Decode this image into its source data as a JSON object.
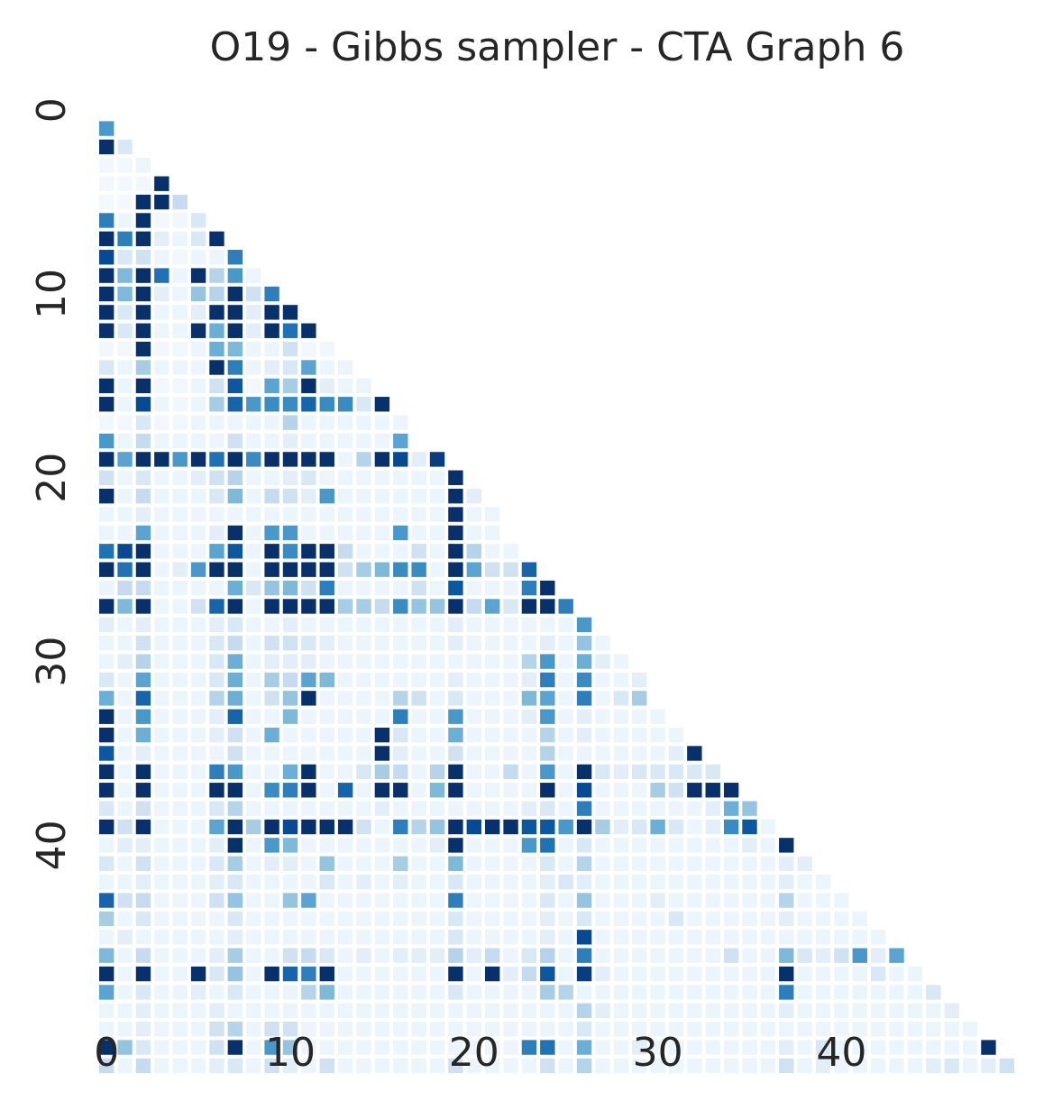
{
  "chart_data": {
    "type": "heatmap",
    "title": "O19 - Gibbs sampler - CTA Graph 6",
    "xlabel": "",
    "ylabel": "",
    "n": 50,
    "mask": "lower-triangle",
    "colormap": "Blues",
    "vmin": 0,
    "vmax": 1,
    "colorbar": false,
    "grid": false,
    "x_ticks": [
      0,
      10,
      20,
      30,
      40
    ],
    "x_tick_labels": [
      "0",
      "10",
      "20",
      "30",
      "40"
    ],
    "y_ticks": [
      0,
      10,
      20,
      30,
      40
    ],
    "y_tick_labels": [
      "0",
      "10",
      "20",
      "30",
      "40"
    ],
    "rows": [
      [],
      [
        0.6
      ],
      [
        1.0,
        0.15
      ],
      [
        0.03,
        0.03,
        0.05
      ],
      [
        0.02,
        0.02,
        0.03,
        1.0
      ],
      [
        0.02,
        0.02,
        1.0,
        1.0,
        0.25
      ],
      [
        0.7,
        0.05,
        1.0,
        0.03,
        0.03,
        0.15
      ],
      [
        1.0,
        0.7,
        1.0,
        0.1,
        0.05,
        0.15,
        1.0
      ],
      [
        0.9,
        0.15,
        0.2,
        0.05,
        0.03,
        0.05,
        0.05,
        0.7
      ],
      [
        1.0,
        0.45,
        1.0,
        0.75,
        0.05,
        1.0,
        0.3,
        0.6,
        0.05
      ],
      [
        1.0,
        0.45,
        1.0,
        0.1,
        0.05,
        0.4,
        0.3,
        1.0,
        0.2,
        0.7
      ],
      [
        1.0,
        0.15,
        1.0,
        0.05,
        0.05,
        0.1,
        1.0,
        1.0,
        0.1,
        1.0,
        1.0
      ],
      [
        1.0,
        0.15,
        1.0,
        0.05,
        0.05,
        1.0,
        0.5,
        1.0,
        0.1,
        1.0,
        0.75,
        1.0
      ],
      [
        0.03,
        0.03,
        1.0,
        0.03,
        0.03,
        0.05,
        0.5,
        0.45,
        0.05,
        0.05,
        0.2,
        0.03,
        0.03
      ],
      [
        0.15,
        0.05,
        0.35,
        0.05,
        0.05,
        0.05,
        1.0,
        0.7,
        0.05,
        0.1,
        0.15,
        0.55,
        0.05,
        0.05
      ],
      [
        1.0,
        0.05,
        1.0,
        0.03,
        0.03,
        0.05,
        0.2,
        0.85,
        0.03,
        0.55,
        0.35,
        1.0,
        0.1,
        0.05,
        0.05
      ],
      [
        1.0,
        0.05,
        0.9,
        0.05,
        0.03,
        0.05,
        0.35,
        0.8,
        0.6,
        0.65,
        0.65,
        0.8,
        0.65,
        0.65,
        0.15,
        1.0
      ],
      [
        0.03,
        0.03,
        0.15,
        0.03,
        0.03,
        0.05,
        0.05,
        0.05,
        0.05,
        0.05,
        0.3,
        0.05,
        0.05,
        0.05,
        0.05,
        0.05,
        0.05
      ],
      [
        0.6,
        0.05,
        0.25,
        0.05,
        0.05,
        0.05,
        0.05,
        0.2,
        0.05,
        0.05,
        0.1,
        0.05,
        0.05,
        0.05,
        0.05,
        0.05,
        0.55
      ],
      [
        1.0,
        0.55,
        1.0,
        1.0,
        0.6,
        1.0,
        0.75,
        1.0,
        0.65,
        1.0,
        1.0,
        1.0,
        1.0,
        0.05,
        0.3,
        1.0,
        0.9,
        0.1,
        0.95
      ],
      [
        0.2,
        0.05,
        0.15,
        0.05,
        0.05,
        0.1,
        0.2,
        0.3,
        0.05,
        0.05,
        0.1,
        0.15,
        0.05,
        0.05,
        0.05,
        0.05,
        0.05,
        0.05,
        0.05,
        1.0
      ],
      [
        1.0,
        0.05,
        0.25,
        0.05,
        0.05,
        0.05,
        0.15,
        0.45,
        0.05,
        0.25,
        0.2,
        0.1,
        0.6,
        0.05,
        0.05,
        0.05,
        0.05,
        0.05,
        0.05,
        1.0,
        0.1
      ],
      [
        0.05,
        0.05,
        0.1,
        0.05,
        0.05,
        0.05,
        0.05,
        0.05,
        0.05,
        0.05,
        0.05,
        0.05,
        0.05,
        0.05,
        0.05,
        0.05,
        0.05,
        0.05,
        0.05,
        1.0,
        0.05,
        0.05
      ],
      [
        0.05,
        0.05,
        0.55,
        0.05,
        0.05,
        0.05,
        0.1,
        1.0,
        0.05,
        0.6,
        0.6,
        0.05,
        0.05,
        0.05,
        0.05,
        0.05,
        0.6,
        0.05,
        0.05,
        1.0,
        0.05,
        0.05
      ],
      [
        0.75,
        0.9,
        1.0,
        0.05,
        0.05,
        0.05,
        0.55,
        0.85,
        0.05,
        1.0,
        0.65,
        1.0,
        1.0,
        0.25,
        0.05,
        0.05,
        0.05,
        0.2,
        0.05,
        1.0,
        0.3,
        0.05,
        0.05
      ],
      [
        1.0,
        0.75,
        1.0,
        0.05,
        0.1,
        0.6,
        1.0,
        1.0,
        0.05,
        1.0,
        1.0,
        1.0,
        1.0,
        0.2,
        0.35,
        0.45,
        0.65,
        0.65,
        0.05,
        1.0,
        0.55,
        0.2,
        0.2,
        0.8
      ],
      [
        0.05,
        0.25,
        0.25,
        0.05,
        0.05,
        0.05,
        0.05,
        0.5,
        0.15,
        0.4,
        0.45,
        0.2,
        0.7,
        0.05,
        0.05,
        0.05,
        0.05,
        0.2,
        0.05,
        0.85,
        0.05,
        0.05,
        0.05,
        0.7,
        1.0
      ],
      [
        1.0,
        0.45,
        1.0,
        0.05,
        0.05,
        0.2,
        0.8,
        1.0,
        0.05,
        1.0,
        1.0,
        1.0,
        1.0,
        0.35,
        0.35,
        0.25,
        0.65,
        0.4,
        0.4,
        1.0,
        0.25,
        0.55,
        0.15,
        1.0,
        1.0,
        0.7
      ],
      [
        0.1,
        0.05,
        0.1,
        0.05,
        0.05,
        0.05,
        0.1,
        0.15,
        0.05,
        0.05,
        0.1,
        0.05,
        0.05,
        0.05,
        0.05,
        0.05,
        0.05,
        0.05,
        0.05,
        0.1,
        0.05,
        0.05,
        0.05,
        0.05,
        0.05,
        0.05,
        0.6
      ],
      [
        0.05,
        0.05,
        0.2,
        0.05,
        0.05,
        0.05,
        0.15,
        0.25,
        0.05,
        0.2,
        0.2,
        0.15,
        0.1,
        0.05,
        0.05,
        0.05,
        0.05,
        0.05,
        0.05,
        0.1,
        0.05,
        0.05,
        0.05,
        0.05,
        0.1,
        0.05,
        0.4,
        0.05
      ],
      [
        0.05,
        0.1,
        0.3,
        0.05,
        0.05,
        0.05,
        0.15,
        0.5,
        0.05,
        0.1,
        0.1,
        0.1,
        0.05,
        0.05,
        0.05,
        0.05,
        0.05,
        0.05,
        0.05,
        0.05,
        0.05,
        0.05,
        0.05,
        0.3,
        0.6,
        0.05,
        0.5,
        0.1,
        0.05
      ],
      [
        0.15,
        0.05,
        0.55,
        0.05,
        0.05,
        0.05,
        0.15,
        0.5,
        0.05,
        0.35,
        0.25,
        0.55,
        0.45,
        0.05,
        0.05,
        0.05,
        0.05,
        0.05,
        0.05,
        0.1,
        0.05,
        0.05,
        0.05,
        0.1,
        0.7,
        0.05,
        0.65,
        0.05,
        0.05,
        0.1
      ],
      [
        0.5,
        0.05,
        0.8,
        0.05,
        0.05,
        0.05,
        0.3,
        0.5,
        0.05,
        0.2,
        0.4,
        1.0,
        0.05,
        0.05,
        0.05,
        0.05,
        0.3,
        0.2,
        0.05,
        0.15,
        0.05,
        0.05,
        0.05,
        0.45,
        0.55,
        0.05,
        0.7,
        0.05,
        0.15,
        0.35
      ],
      [
        1.0,
        0.05,
        0.6,
        0.05,
        0.05,
        0.05,
        0.1,
        0.8,
        0.05,
        0.05,
        0.45,
        0.05,
        0.05,
        0.05,
        0.05,
        0.05,
        0.7,
        0.05,
        0.05,
        0.6,
        0.05,
        0.05,
        0.05,
        0.1,
        0.6,
        0.05,
        0.1,
        0.05,
        0.05,
        0.05,
        0.05
      ],
      [
        1.0,
        0.05,
        0.5,
        0.05,
        0.05,
        0.05,
        0.1,
        0.2,
        0.05,
        0.5,
        0.05,
        0.05,
        0.05,
        0.05,
        0.05,
        1.0,
        0.15,
        0.05,
        0.05,
        0.5,
        0.05,
        0.05,
        0.05,
        0.05,
        0.3,
        0.05,
        0.1,
        0.05,
        0.05,
        0.05,
        0.05,
        0.05
      ],
      [
        0.85,
        0.05,
        0.1,
        0.05,
        0.05,
        0.05,
        0.05,
        0.2,
        0.05,
        0.05,
        0.05,
        0.05,
        0.05,
        0.05,
        0.05,
        1.0,
        0.1,
        0.05,
        0.05,
        0.2,
        0.05,
        0.05,
        0.05,
        0.05,
        0.3,
        0.05,
        0.05,
        0.05,
        0.05,
        0.05,
        0.05,
        0.1,
        1.0
      ],
      [
        1.0,
        0.05,
        1.0,
        0.05,
        0.05,
        0.05,
        0.7,
        0.6,
        0.05,
        0.05,
        0.5,
        1.0,
        0.05,
        0.05,
        0.15,
        0.35,
        0.25,
        0.05,
        0.3,
        1.0,
        0.05,
        0.05,
        0.25,
        0.05,
        0.6,
        0.05,
        1.0,
        0.15,
        0.1,
        0.15,
        0.15,
        0.15,
        0.15,
        0.15
      ],
      [
        1.0,
        0.05,
        1.0,
        0.05,
        0.05,
        0.05,
        1.0,
        1.0,
        0.05,
        0.65,
        0.7,
        1.0,
        0.05,
        0.8,
        0.05,
        1.0,
        1.0,
        0.05,
        0.45,
        1.0,
        0.05,
        0.05,
        0.05,
        0.05,
        1.0,
        0.05,
        0.9,
        0.05,
        0.05,
        0.05,
        0.35,
        0.2,
        1.0,
        1.0,
        1.0
      ],
      [
        0.15,
        0.05,
        0.2,
        0.05,
        0.05,
        0.05,
        0.15,
        0.3,
        0.05,
        0.05,
        0.05,
        0.05,
        0.05,
        0.05,
        0.05,
        0.1,
        0.05,
        0.05,
        0.05,
        0.05,
        0.05,
        0.05,
        0.05,
        0.1,
        0.15,
        0.05,
        0.7,
        0.05,
        0.05,
        0.05,
        0.05,
        0.05,
        0.05,
        0.1,
        0.5,
        0.4
      ],
      [
        1.0,
        0.2,
        1.0,
        0.05,
        0.05,
        0.05,
        0.55,
        1.0,
        0.35,
        1.0,
        0.9,
        1.0,
        1.0,
        1.0,
        0.2,
        0.05,
        0.7,
        0.3,
        0.4,
        1.0,
        0.9,
        1.0,
        1.0,
        0.85,
        0.85,
        0.6,
        1.0,
        0.35,
        0.1,
        0.15,
        0.5,
        0.15,
        0.05,
        0.1,
        0.65,
        0.85,
        0.05
      ],
      [
        0.05,
        0.1,
        0.1,
        0.05,
        0.05,
        0.05,
        0.1,
        1.0,
        0.05,
        0.6,
        0.45,
        0.05,
        0.05,
        0.05,
        0.05,
        0.05,
        0.05,
        0.05,
        0.1,
        1.0,
        0.05,
        0.05,
        0.05,
        0.6,
        0.75,
        0.05,
        0.15,
        0.05,
        0.05,
        0.05,
        0.05,
        0.05,
        0.05,
        0.05,
        0.05,
        0.1,
        0.05,
        1.0
      ],
      [
        0.15,
        0.05,
        0.2,
        0.05,
        0.05,
        0.05,
        0.15,
        0.35,
        0.05,
        0.1,
        0.1,
        0.05,
        0.4,
        0.05,
        0.05,
        0.05,
        0.35,
        0.05,
        0.05,
        0.45,
        0.05,
        0.05,
        0.05,
        0.05,
        0.15,
        0.05,
        0.3,
        0.05,
        0.05,
        0.05,
        0.05,
        0.05,
        0.05,
        0.05,
        0.05,
        0.05,
        0.05,
        0.1,
        0.1
      ],
      [
        0.05,
        0.05,
        0.1,
        0.05,
        0.05,
        0.05,
        0.1,
        0.15,
        0.05,
        0.05,
        0.05,
        0.05,
        0.15,
        0.05,
        0.1,
        0.05,
        0.1,
        0.05,
        0.05,
        0.15,
        0.05,
        0.05,
        0.05,
        0.05,
        0.1,
        0.15,
        0.1,
        0.05,
        0.05,
        0.05,
        0.05,
        0.05,
        0.05,
        0.05,
        0.05,
        0.05,
        0.05,
        0.1,
        0.05,
        0.05
      ],
      [
        0.8,
        0.2,
        0.25,
        0.05,
        0.05,
        0.05,
        0.2,
        0.4,
        0.05,
        0.05,
        0.4,
        0.55,
        0.05,
        0.05,
        0.05,
        0.05,
        0.05,
        0.05,
        0.05,
        0.7,
        0.05,
        0.05,
        0.05,
        0.05,
        0.15,
        0.05,
        0.4,
        0.05,
        0.05,
        0.05,
        0.1,
        0.05,
        0.05,
        0.05,
        0.05,
        0.05,
        0.05,
        0.3,
        0.05,
        0.05,
        0.05
      ],
      [
        0.35,
        0.05,
        0.15,
        0.05,
        0.05,
        0.05,
        0.05,
        0.15,
        0.05,
        0.05,
        0.05,
        0.05,
        0.05,
        0.05,
        0.05,
        0.05,
        0.05,
        0.05,
        0.05,
        0.15,
        0.05,
        0.05,
        0.05,
        0.05,
        0.1,
        0.05,
        0.15,
        0.05,
        0.05,
        0.05,
        0.05,
        0.15,
        0.05,
        0.05,
        0.05,
        0.05,
        0.05,
        0.1,
        0.05,
        0.05,
        0.05,
        0.05
      ],
      [
        0.05,
        0.1,
        0.05,
        0.05,
        0.05,
        0.05,
        0.05,
        0.1,
        0.05,
        0.05,
        0.05,
        0.05,
        0.05,
        0.05,
        0.05,
        0.05,
        0.05,
        0.05,
        0.05,
        0.15,
        0.05,
        0.05,
        0.05,
        0.05,
        0.1,
        0.05,
        0.9,
        0.05,
        0.05,
        0.05,
        0.05,
        0.05,
        0.05,
        0.05,
        0.05,
        0.05,
        0.05,
        0.05,
        0.05,
        0.05,
        0.05,
        0.05,
        0.05
      ],
      [
        0.45,
        0.05,
        0.25,
        0.05,
        0.05,
        0.05,
        0.1,
        0.35,
        0.05,
        0.05,
        0.2,
        0.25,
        0.15,
        0.05,
        0.1,
        0.05,
        0.1,
        0.1,
        0.1,
        0.3,
        0.1,
        0.25,
        0.05,
        0.15,
        0.3,
        0.05,
        0.7,
        0.05,
        0.05,
        0.05,
        0.05,
        0.05,
        0.05,
        0.05,
        0.2,
        0.05,
        0.05,
        0.45,
        0.15,
        0.1,
        0.2,
        0.6,
        0.1,
        0.55
      ],
      [
        1.0,
        0.05,
        1.0,
        0.05,
        0.05,
        1.0,
        0.15,
        0.4,
        0.05,
        1.0,
        0.8,
        0.7,
        1.0,
        0.05,
        0.05,
        0.05,
        0.05,
        0.05,
        0.05,
        1.0,
        0.05,
        1.0,
        0.1,
        0.25,
        0.85,
        0.05,
        0.95,
        0.1,
        0.05,
        0.05,
        0.05,
        0.05,
        0.05,
        0.05,
        0.05,
        0.05,
        0.05,
        1.0,
        0.05,
        0.05,
        0.05,
        0.05,
        0.15,
        0.05,
        0.05
      ],
      [
        0.55,
        0.05,
        0.15,
        0.05,
        0.05,
        0.1,
        0.05,
        0.15,
        0.05,
        0.05,
        0.05,
        0.3,
        0.45,
        0.05,
        0.05,
        0.05,
        0.05,
        0.05,
        0.05,
        0.15,
        0.05,
        0.05,
        0.05,
        0.05,
        0.35,
        0.3,
        0.05,
        0.05,
        0.05,
        0.05,
        0.05,
        0.05,
        0.05,
        0.05,
        0.05,
        0.05,
        0.05,
        0.7,
        0.05,
        0.05,
        0.05,
        0.05,
        0.05,
        0.05,
        0.05,
        0.15
      ],
      [
        0.05,
        0.05,
        0.1,
        0.05,
        0.05,
        0.05,
        0.1,
        0.05,
        0.05,
        0.05,
        0.05,
        0.05,
        0.05,
        0.05,
        0.05,
        0.05,
        0.05,
        0.05,
        0.05,
        0.05,
        0.05,
        0.05,
        0.05,
        0.05,
        0.05,
        0.05,
        0.3,
        0.1,
        0.05,
        0.05,
        0.05,
        0.05,
        0.05,
        0.05,
        0.05,
        0.05,
        0.05,
        0.1,
        0.05,
        0.05,
        0.05,
        0.05,
        0.05,
        0.05,
        0.05,
        0.05,
        0.1
      ],
      [
        0.05,
        0.05,
        0.1,
        0.05,
        0.05,
        0.05,
        0.2,
        0.3,
        0.05,
        0.2,
        0.2,
        0.05,
        0.05,
        0.05,
        0.05,
        0.05,
        0.05,
        0.05,
        0.05,
        0.05,
        0.05,
        0.05,
        0.05,
        0.05,
        0.05,
        0.05,
        0.15,
        0.05,
        0.05,
        0.05,
        0.05,
        0.05,
        0.05,
        0.05,
        0.05,
        0.05,
        0.05,
        0.05,
        0.05,
        0.05,
        0.05,
        0.05,
        0.05,
        0.05,
        0.05,
        0.05,
        0.05,
        0.05
      ],
      [
        1.0,
        0.4,
        0.15,
        0.05,
        0.05,
        0.05,
        0.2,
        1.0,
        0.05,
        0.6,
        0.4,
        0.05,
        0.05,
        0.05,
        0.05,
        0.05,
        0.05,
        0.05,
        0.05,
        0.05,
        0.05,
        0.05,
        0.05,
        0.7,
        0.75,
        0.05,
        0.5,
        0.05,
        0.05,
        0.1,
        0.05,
        0.05,
        0.05,
        0.05,
        0.05,
        0.05,
        0.05,
        0.1,
        0.05,
        0.15,
        0.05,
        0.05,
        0.05,
        0.05,
        0.05,
        0.05,
        0.05,
        0.05,
        1.0
      ],
      [
        0.25,
        0.05,
        0.25,
        0.05,
        0.05,
        0.05,
        0.1,
        0.15,
        0.05,
        0.2,
        0.1,
        0.05,
        0.2,
        0.05,
        0.05,
        0.05,
        0.05,
        0.05,
        0.05,
        0.2,
        0.05,
        0.05,
        0.05,
        0.05,
        0.2,
        0.05,
        0.3,
        0.05,
        0.05,
        0.05,
        0.05,
        0.05,
        0.05,
        0.05,
        0.05,
        0.05,
        0.05,
        0.2,
        0.05,
        0.1,
        0.05,
        0.05,
        0.05,
        0.05,
        0.05,
        0.1,
        0.15,
        0.05,
        0.1,
        0.2
      ]
    ]
  }
}
